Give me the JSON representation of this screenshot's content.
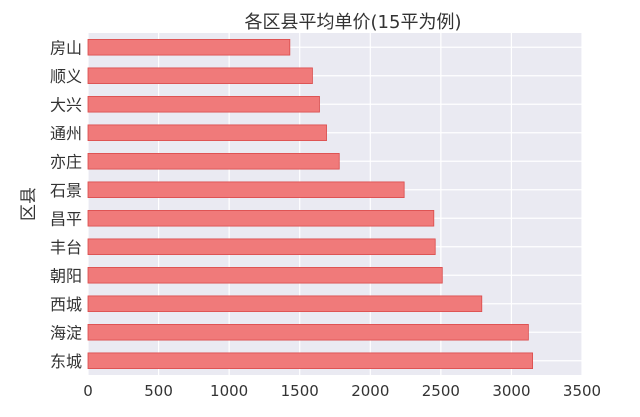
{
  "chart_data": {
    "type": "bar",
    "orientation": "horizontal",
    "title": "各区县平均单价(15平为例)",
    "ylabel": "区县",
    "xlabel": "",
    "categories": [
      "房山",
      "顺义",
      "大兴",
      "通州",
      "亦庄",
      "石景",
      "昌平",
      "丰台",
      "朝阳",
      "西城",
      "海淀",
      "东城"
    ],
    "values": [
      1430,
      1590,
      1640,
      1690,
      1780,
      2240,
      2450,
      2460,
      2510,
      2790,
      3120,
      3150
    ],
    "xlim": [
      0,
      3500
    ],
    "xticks": [
      "0",
      "500",
      "1000",
      "1500",
      "2000",
      "2500",
      "3000",
      "3500"
    ],
    "xtick_values": [
      0,
      500,
      1000,
      1500,
      2000,
      2500,
      3000,
      3500
    ],
    "grid": true,
    "colors": {
      "bar_fill": "#f07a7a",
      "bar_edge": "#d94a4a",
      "plot_background": "#eaeaf2",
      "grid": "#ffffff",
      "text": "#333333"
    }
  }
}
